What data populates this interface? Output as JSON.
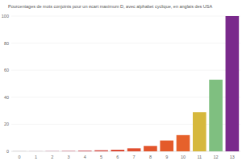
{
  "chart_data": {
    "type": "bar",
    "title": "Pourcentages de mots conjoints pour un écart maximum D, avec alphabet cyclique, en anglais des USA",
    "categories": [
      "0",
      "1",
      "2",
      "3",
      "4",
      "5",
      "6",
      "7",
      "8",
      "9",
      "10",
      "11",
      "12",
      "13"
    ],
    "values": [
      0.1,
      0.1,
      0.2,
      0.3,
      0.5,
      0.8,
      1.2,
      2.2,
      4,
      8,
      12,
      29,
      53,
      100
    ],
    "colors": [
      "#a38395",
      "#b0728f",
      "#bc6283",
      "#c65268",
      "#cf4650",
      "#d64840",
      "#dc4a35",
      "#e04e2e",
      "#e2552c",
      "#e45a2a",
      "#e6612b",
      "#d6b83c",
      "#7fbf80",
      "#7a2a8c"
    ],
    "ylim": [
      0,
      100
    ],
    "yticks": [
      0,
      20,
      40,
      60,
      80,
      100
    ],
    "grid": true
  }
}
